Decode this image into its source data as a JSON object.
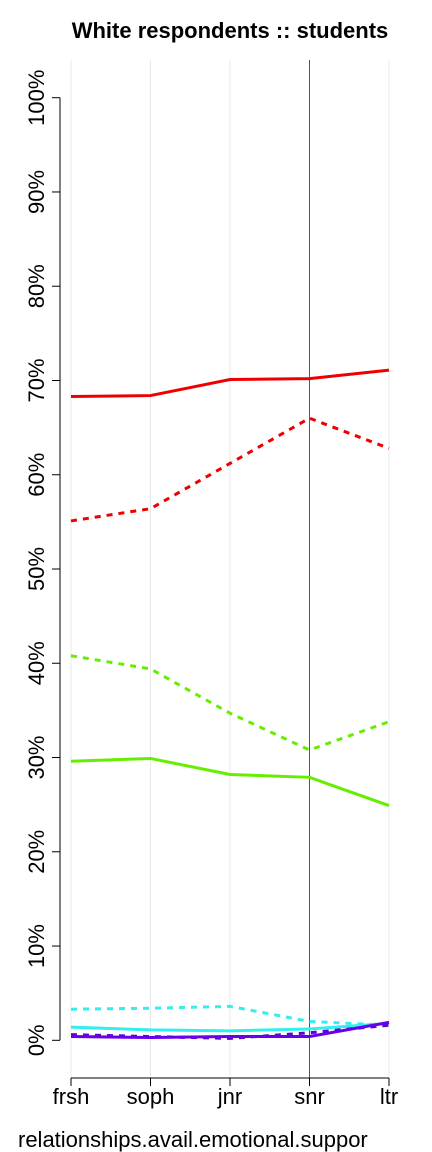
{
  "chart_data": {
    "type": "line",
    "title": "White respondents :: students",
    "x_label": "relationships.avail.emotional.suppor",
    "categories": [
      "frsh",
      "soph",
      "jnr",
      "snr",
      "ltr"
    ],
    "ylim": [
      -4,
      104
    ],
    "yticks": [
      {
        "value": 0,
        "label": "0%"
      },
      {
        "value": 10,
        "label": "10%"
      },
      {
        "value": 20,
        "label": "20%"
      },
      {
        "value": 30,
        "label": "30%"
      },
      {
        "value": 40,
        "label": "40%"
      },
      {
        "value": 50,
        "label": "50%"
      },
      {
        "value": 60,
        "label": "60%"
      },
      {
        "value": 70,
        "label": "70%"
      },
      {
        "value": 80,
        "label": "80%"
      },
      {
        "value": 90,
        "label": "90%"
      },
      {
        "value": 100,
        "label": "100%"
      }
    ],
    "grid": true,
    "vline": "snr",
    "series": [
      {
        "color": "#ee0000",
        "dashed": false,
        "values": [
          68.3,
          68.4,
          70.1,
          70.2,
          71.1
        ]
      },
      {
        "color": "#ee0000",
        "dashed": true,
        "values": [
          55.1,
          56.4,
          61.2,
          66.0,
          62.8
        ]
      },
      {
        "color": "#66ee00",
        "dashed": true,
        "values": [
          40.8,
          39.4,
          34.7,
          30.8,
          33.8
        ]
      },
      {
        "color": "#66ee00",
        "dashed": false,
        "values": [
          29.6,
          29.9,
          28.2,
          27.9,
          24.9
        ]
      },
      {
        "color": "#33eeee",
        "dashed": true,
        "values": [
          3.3,
          3.4,
          3.6,
          2.0,
          1.6
        ]
      },
      {
        "color": "#33eeee",
        "dashed": false,
        "values": [
          1.4,
          1.1,
          1.0,
          1.2,
          1.8
        ]
      },
      {
        "color": "#6600cc",
        "dashed": true,
        "values": [
          0.6,
          0.4,
          0.2,
          0.8,
          1.6
        ]
      },
      {
        "color": "#6600ee",
        "dashed": false,
        "values": [
          0.4,
          0.3,
          0.4,
          0.4,
          1.9
        ]
      }
    ]
  }
}
